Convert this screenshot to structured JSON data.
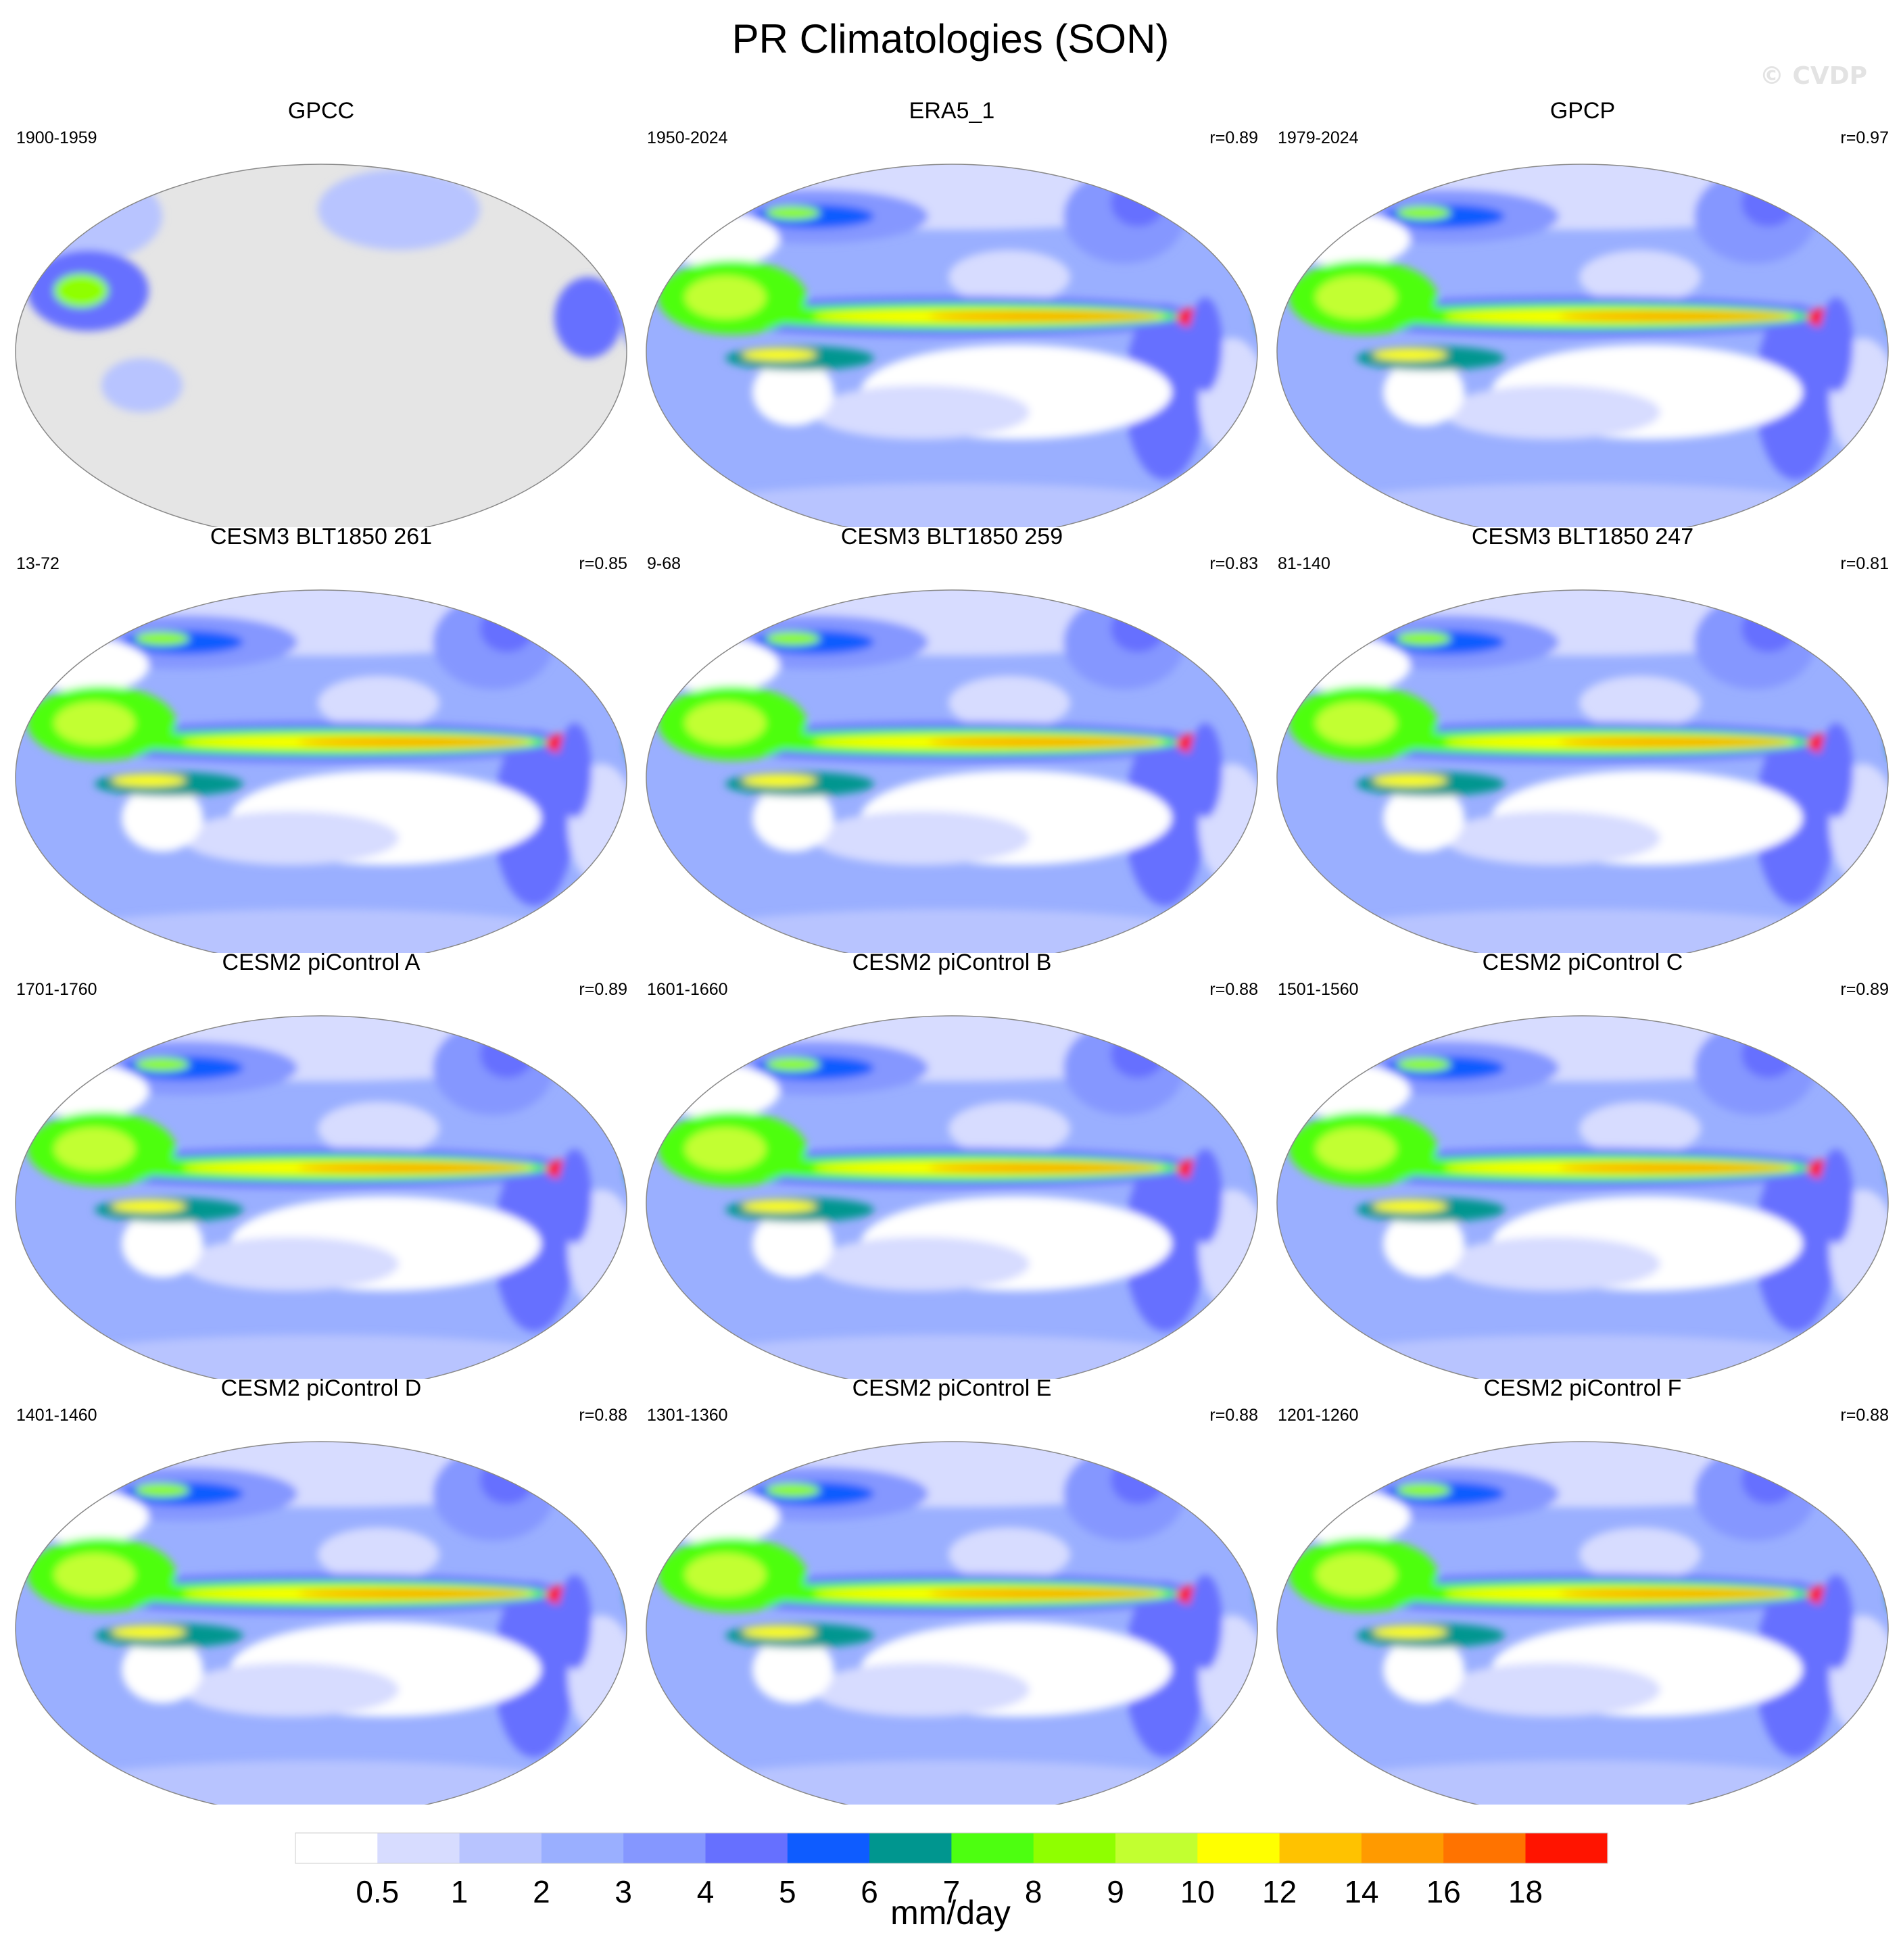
{
  "title": "PR Climatologies (SON)",
  "watermark": "© CVDP",
  "panels": [
    {
      "title": "GPCC",
      "period": "1900-1959",
      "corr": "",
      "style": "obs_land"
    },
    {
      "title": "ERA5_1",
      "period": "1950-2024",
      "corr": "r=0.89",
      "style": "era5"
    },
    {
      "title": "GPCP",
      "period": "1979-2024",
      "corr": "r=0.97",
      "style": "gpcp"
    },
    {
      "title": "CESM3 BLT1850 261",
      "period": "13-72",
      "corr": "r=0.85",
      "style": "cesm3"
    },
    {
      "title": "CESM3 BLT1850 259",
      "period": "9-68",
      "corr": "r=0.83",
      "style": "cesm3"
    },
    {
      "title": "CESM3 BLT1850 247",
      "period": "81-140",
      "corr": "r=0.81",
      "style": "cesm3"
    },
    {
      "title": "CESM2 piControl A",
      "period": "1701-1760",
      "corr": "r=0.89",
      "style": "cesm2"
    },
    {
      "title": "CESM2 piControl B",
      "period": "1601-1660",
      "corr": "r=0.88",
      "style": "cesm2"
    },
    {
      "title": "CESM2 piControl C",
      "period": "1501-1560",
      "corr": "r=0.89",
      "style": "cesm2"
    },
    {
      "title": "CESM2 piControl D",
      "period": "1401-1460",
      "corr": "r=0.88",
      "style": "cesm2"
    },
    {
      "title": "CESM2 piControl E",
      "period": "1301-1360",
      "corr": "r=0.88",
      "style": "cesm2"
    },
    {
      "title": "CESM2 piControl F",
      "period": "1201-1260",
      "corr": "r=0.88",
      "style": "cesm2"
    }
  ],
  "colorbar": {
    "units": "mm/day",
    "levels": [
      "0.5",
      "1",
      "2",
      "3",
      "4",
      "5",
      "6",
      "7",
      "8",
      "9",
      "10",
      "12",
      "14",
      "16",
      "18"
    ],
    "colors": [
      "#ffffff",
      "#d7dcff",
      "#b8c4ff",
      "#9aafff",
      "#8597ff",
      "#6670ff",
      "#0e5cff",
      "#00968f",
      "#4dff10",
      "#8fff00",
      "#c2ff30",
      "#ffff00",
      "#ffc200",
      "#ff9a00",
      "#ff7300",
      "#ff1400"
    ],
    "missing_color": "#e5e5e5"
  }
}
